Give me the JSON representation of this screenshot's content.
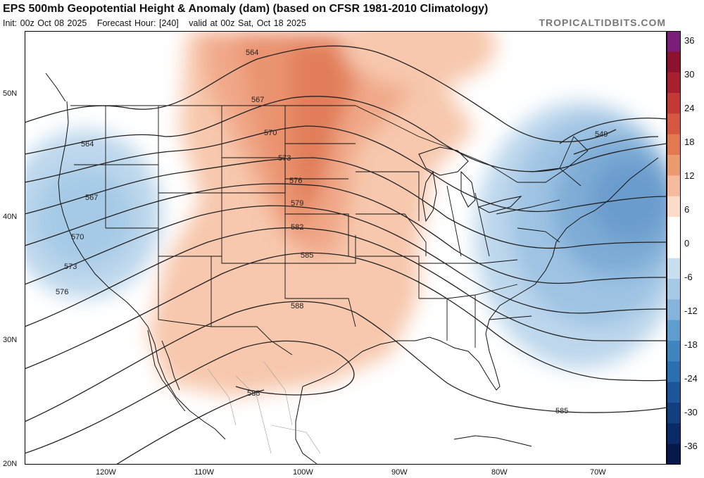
{
  "header": {
    "title": "EPS 500mb Geopotential Height & Anomaly (dam) (based on CFSR 1981-2010 Climatology)",
    "init": "Init: 00z Oct 08 2025",
    "forecast_hour": "Forecast Hour: [240]",
    "valid": "valid at 00z Sat, Oct 18 2025",
    "brand": "TROPICALTIDBITS.COM"
  },
  "axes": {
    "lat_labels": [
      "50N",
      "40N",
      "30N",
      "20N"
    ],
    "lon_labels": [
      "120W",
      "110W",
      "100W",
      "90W",
      "80W",
      "70W"
    ]
  },
  "colorbar": {
    "labels": [
      "36",
      "30",
      "24",
      "18",
      "12",
      "6",
      "0",
      "-6",
      "-12",
      "-18",
      "-24",
      "-30",
      "-36"
    ],
    "colors": [
      "#7a1e7a",
      "#8c1230",
      "#a8202f",
      "#c23a35",
      "#d4573f",
      "#e2794f",
      "#ec9a6f",
      "#f4bc9c",
      "#fbdcc8",
      "#ffffff",
      "#ffffff",
      "#c8dff0",
      "#a6cae6",
      "#84b4db",
      "#5f9dcf",
      "#3f86c1",
      "#2a6fb0",
      "#1c5699",
      "#123f80",
      "#0b2b66",
      "#06194a"
    ]
  },
  "contours": {
    "labels": [
      "564",
      "567",
      "570",
      "573",
      "576",
      "579",
      "582",
      "585",
      "588",
      "564",
      "567",
      "570",
      "573",
      "576",
      "549",
      "588",
      "585"
    ]
  }
}
